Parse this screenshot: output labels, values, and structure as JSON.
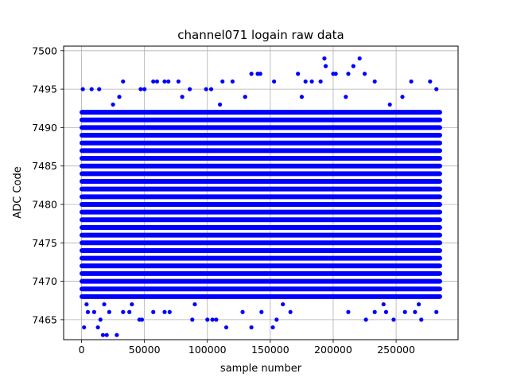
{
  "chart_data": {
    "type": "scatter",
    "title": "channel071 logain raw data",
    "xlabel": "sample number",
    "ylabel": "ADC Code",
    "xlim": [
      -14250,
      299250
    ],
    "ylim": [
      7462.4,
      7500.6
    ],
    "x_ticks": [
      0,
      50000,
      100000,
      150000,
      200000,
      250000
    ],
    "x_tick_labels": [
      "0",
      "50000",
      "100000",
      "150000",
      "200000",
      "250000"
    ],
    "y_ticks": [
      7465,
      7470,
      7475,
      7480,
      7485,
      7490,
      7495,
      7500
    ],
    "y_tick_labels": [
      "7465",
      "7470",
      "7475",
      "7480",
      "7485",
      "7490",
      "7495",
      "7500"
    ],
    "grid": true,
    "marker_color": "#0000ff",
    "x_range": [
      0,
      285000
    ],
    "dense_levels": [
      7468,
      7469,
      7470,
      7471,
      7472,
      7473,
      7474,
      7475,
      7476,
      7477,
      7478,
      7479,
      7480,
      7481,
      7482,
      7483,
      7484,
      7485,
      7486,
      7487,
      7488,
      7489,
      7490,
      7491,
      7492
    ],
    "sparse_points": [
      {
        "x": 1000,
        "y": 7495
      },
      {
        "x": 8000,
        "y": 7495
      },
      {
        "x": 14000,
        "y": 7495
      },
      {
        "x": 33000,
        "y": 7496
      },
      {
        "x": 47000,
        "y": 7495
      },
      {
        "x": 50000,
        "y": 7495
      },
      {
        "x": 57000,
        "y": 7496
      },
      {
        "x": 60000,
        "y": 7496
      },
      {
        "x": 66000,
        "y": 7496
      },
      {
        "x": 69000,
        "y": 7496
      },
      {
        "x": 77000,
        "y": 7496
      },
      {
        "x": 86000,
        "y": 7495
      },
      {
        "x": 99000,
        "y": 7495
      },
      {
        "x": 103000,
        "y": 7495
      },
      {
        "x": 112000,
        "y": 7496
      },
      {
        "x": 120000,
        "y": 7496
      },
      {
        "x": 135000,
        "y": 7497
      },
      {
        "x": 140000,
        "y": 7497
      },
      {
        "x": 142000,
        "y": 7497
      },
      {
        "x": 153000,
        "y": 7496
      },
      {
        "x": 172000,
        "y": 7497
      },
      {
        "x": 178000,
        "y": 7496
      },
      {
        "x": 183000,
        "y": 7496
      },
      {
        "x": 190000,
        "y": 7496
      },
      {
        "x": 193000,
        "y": 7499
      },
      {
        "x": 194000,
        "y": 7498
      },
      {
        "x": 200000,
        "y": 7497
      },
      {
        "x": 202000,
        "y": 7497
      },
      {
        "x": 212000,
        "y": 7497
      },
      {
        "x": 216000,
        "y": 7498
      },
      {
        "x": 221000,
        "y": 7499
      },
      {
        "x": 225000,
        "y": 7497
      },
      {
        "x": 233000,
        "y": 7496
      },
      {
        "x": 262000,
        "y": 7496
      },
      {
        "x": 277000,
        "y": 7496
      },
      {
        "x": 282000,
        "y": 7495
      },
      {
        "x": 2000,
        "y": 7464
      },
      {
        "x": 5000,
        "y": 7466
      },
      {
        "x": 10000,
        "y": 7466
      },
      {
        "x": 13000,
        "y": 7464
      },
      {
        "x": 15000,
        "y": 7465
      },
      {
        "x": 17000,
        "y": 7463
      },
      {
        "x": 20000,
        "y": 7463
      },
      {
        "x": 22000,
        "y": 7466
      },
      {
        "x": 28000,
        "y": 7463
      },
      {
        "x": 33000,
        "y": 7466
      },
      {
        "x": 38000,
        "y": 7466
      },
      {
        "x": 46000,
        "y": 7465
      },
      {
        "x": 48000,
        "y": 7465
      },
      {
        "x": 57000,
        "y": 7466
      },
      {
        "x": 66000,
        "y": 7466
      },
      {
        "x": 70000,
        "y": 7466
      },
      {
        "x": 88000,
        "y": 7465
      },
      {
        "x": 100000,
        "y": 7465
      },
      {
        "x": 104000,
        "y": 7465
      },
      {
        "x": 107000,
        "y": 7465
      },
      {
        "x": 115000,
        "y": 7464
      },
      {
        "x": 128000,
        "y": 7466
      },
      {
        "x": 135000,
        "y": 7464
      },
      {
        "x": 143000,
        "y": 7466
      },
      {
        "x": 152000,
        "y": 7464
      },
      {
        "x": 155000,
        "y": 7465
      },
      {
        "x": 166000,
        "y": 7466
      },
      {
        "x": 212000,
        "y": 7466
      },
      {
        "x": 226000,
        "y": 7465
      },
      {
        "x": 233000,
        "y": 7466
      },
      {
        "x": 242000,
        "y": 7466
      },
      {
        "x": 248000,
        "y": 7465
      },
      {
        "x": 257000,
        "y": 7466
      },
      {
        "x": 265000,
        "y": 7466
      },
      {
        "x": 270000,
        "y": 7465
      },
      {
        "x": 282000,
        "y": 7466
      },
      {
        "x": 4000,
        "y": 7467
      },
      {
        "x": 18000,
        "y": 7467
      },
      {
        "x": 40000,
        "y": 7467
      },
      {
        "x": 90000,
        "y": 7467
      },
      {
        "x": 160000,
        "y": 7467
      },
      {
        "x": 240000,
        "y": 7467
      },
      {
        "x": 268000,
        "y": 7467
      },
      {
        "x": 30000,
        "y": 7494
      },
      {
        "x": 80000,
        "y": 7494
      },
      {
        "x": 130000,
        "y": 7494
      },
      {
        "x": 175000,
        "y": 7494
      },
      {
        "x": 210000,
        "y": 7494
      },
      {
        "x": 255000,
        "y": 7494
      },
      {
        "x": 25000,
        "y": 7493
      },
      {
        "x": 110000,
        "y": 7493
      },
      {
        "x": 245000,
        "y": 7493
      }
    ]
  }
}
